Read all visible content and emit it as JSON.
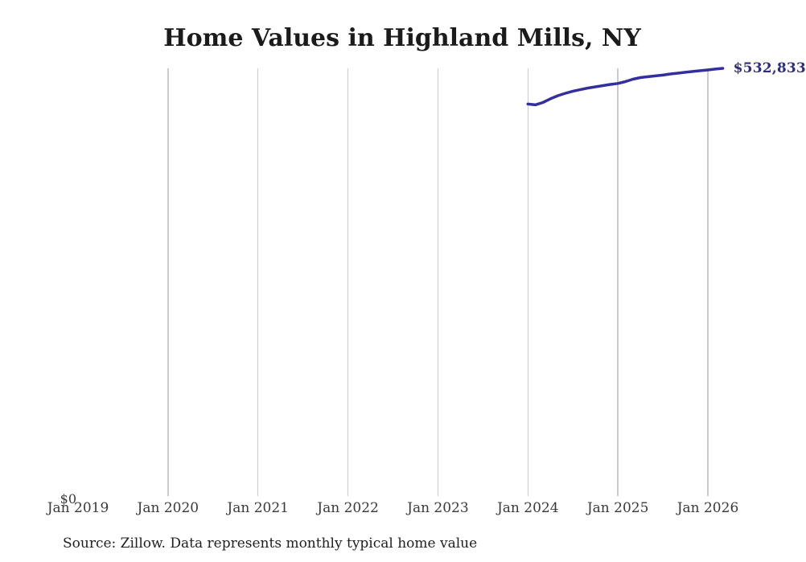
{
  "page": {
    "title": "Home Values in Highland Mills, NY",
    "latest_value_label": "$532,833",
    "y_zero_label": "$0",
    "source_note": "Source: Zillow. Data represents monthly typical home value"
  },
  "chart_data": {
    "type": "line",
    "title": "Home Values in Highland Mills, NY",
    "xlabel": "",
    "ylabel": "",
    "ylim": [
      0,
      532833
    ],
    "grid": "vertical-only",
    "legend": "none",
    "x_ticks": [
      {
        "label": "Jan 2019",
        "gridline": false
      },
      {
        "label": "Jan 2020",
        "gridline": true
      },
      {
        "label": "Jan 2021",
        "gridline": true
      },
      {
        "label": "Jan 2022",
        "gridline": true
      },
      {
        "label": "Jan 2023",
        "gridline": true
      },
      {
        "label": "Jan 2024",
        "gridline": true
      },
      {
        "label": "Jan 2025",
        "gridline": true
      },
      {
        "label": "Jan 2026",
        "gridline": true
      }
    ],
    "y_axis_labels_visible": [
      "$0"
    ],
    "end_annotation": "$532,833",
    "series": [
      {
        "name": "Monthly typical home value",
        "start_month": "2024-01",
        "end_month": "2026-03",
        "interval": "monthly",
        "values": [
          487900,
          486900,
          489900,
          494500,
          498500,
          501500,
          504100,
          506100,
          508100,
          509600,
          511100,
          512600,
          513800,
          516200,
          519200,
          521200,
          522300,
          523300,
          524300,
          525800,
          526800,
          527900,
          528900,
          529900,
          530800,
          531900,
          532833
        ]
      }
    ],
    "colors": {
      "line": "#342fa0",
      "annotation": "#2d2d85",
      "gridline": "#cccccc",
      "tick_label": "#3a3a3a",
      "title": "#1b1b1b",
      "source": "#1f1f1f",
      "background": "#ffffff"
    }
  }
}
